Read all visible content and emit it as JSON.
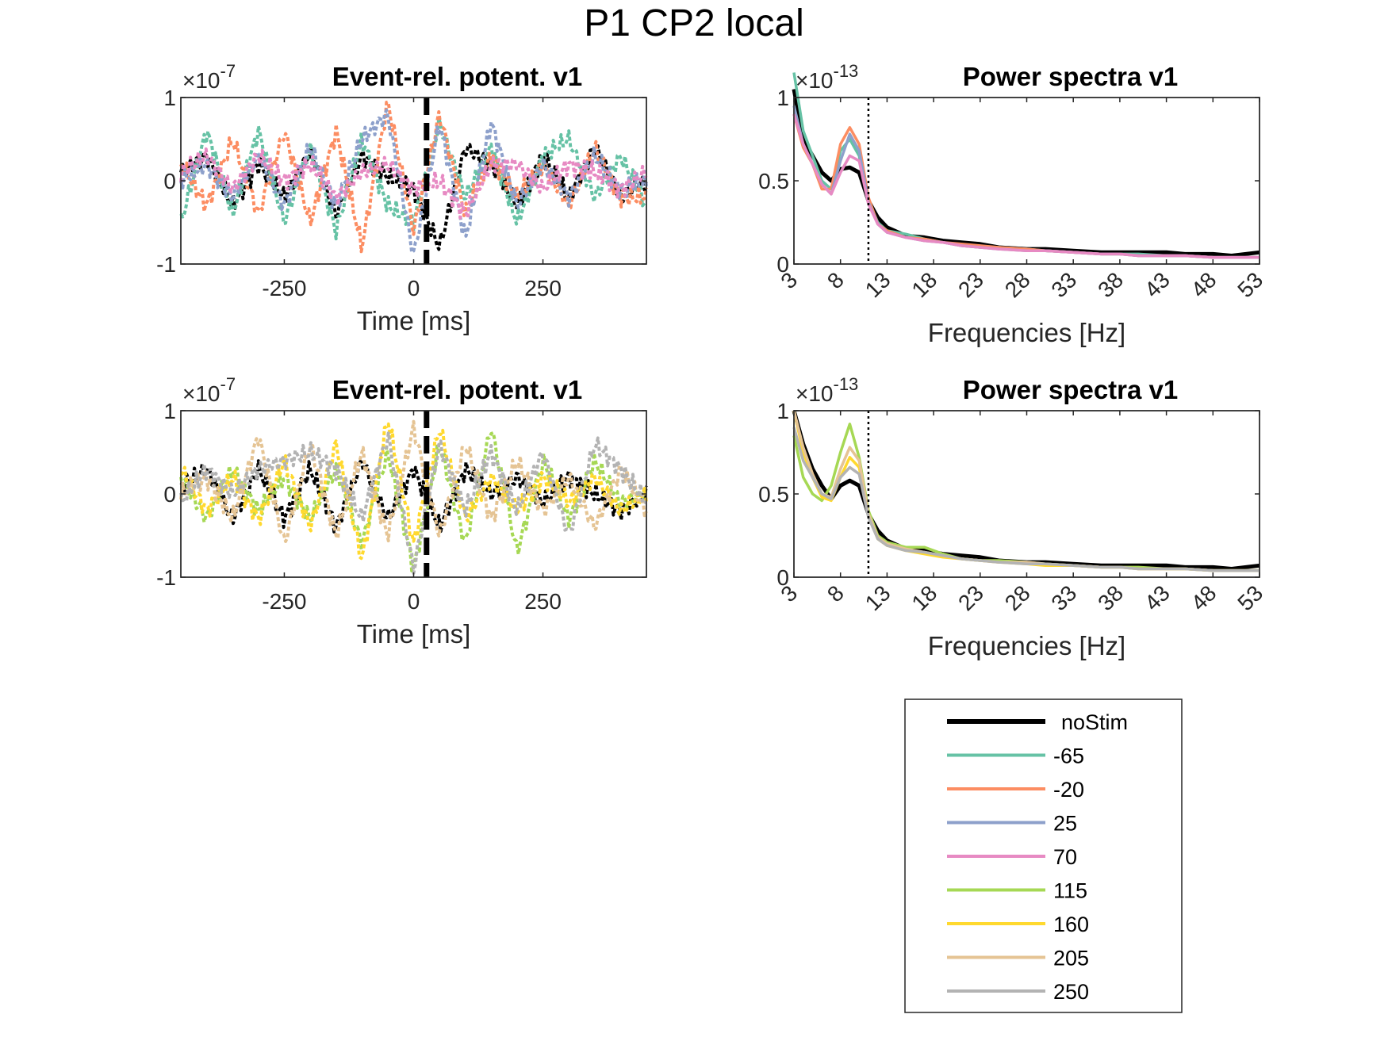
{
  "figure_title": "P1 CP2 local",
  "colors": {
    "noStim": "#000000",
    "-65": "#66c2a5",
    "-20": "#fc8d62",
    "25": "#8da0cb",
    "70": "#e78ac3",
    "115": "#a6d854",
    "160": "#ffd92f",
    "205": "#e5c494",
    "250": "#b3b3b3"
  },
  "legend": {
    "entries": [
      {
        "label": "noStim",
        "color": "#000000"
      },
      {
        "label": "-65",
        "color": "#66c2a5"
      },
      {
        "label": "-20",
        "color": "#fc8d62"
      },
      {
        "label": "25",
        "color": "#8da0cb"
      },
      {
        "label": "70",
        "color": "#e78ac3"
      },
      {
        "label": "115",
        "color": "#a6d854"
      },
      {
        "label": "160",
        "color": "#ffd92f"
      },
      {
        "label": "205",
        "color": "#e5c494"
      },
      {
        "label": "250",
        "color": "#b3b3b3"
      }
    ]
  },
  "chart_data": [
    {
      "type": "line",
      "title": "Event-rel. potent. v1",
      "exponent": "-7",
      "xlabel": "Time [ms]",
      "ylabel": "",
      "xlim": [
        -450,
        450
      ],
      "ylim": [
        -1,
        1
      ],
      "xticks": [
        -250,
        0,
        250
      ],
      "yticks": [
        -1,
        0,
        1
      ],
      "vline_x": 25,
      "series": [
        {
          "name": "noStim",
          "color": "#000000",
          "x": [
            -450,
            -400,
            -350,
            -300,
            -250,
            -200,
            -150,
            -100,
            -50,
            0,
            50,
            100,
            150,
            200,
            250,
            300,
            350,
            400,
            450
          ],
          "values": [
            0.1,
            0.3,
            -0.3,
            0.2,
            -0.2,
            0.35,
            -0.4,
            0.3,
            0.05,
            -0.1,
            -0.8,
            0.4,
            0.2,
            -0.3,
            0.3,
            -0.2,
            0.4,
            -0.2,
            0.0
          ]
        },
        {
          "name": "-65",
          "color": "#66c2a5",
          "x": [
            -450,
            -400,
            -350,
            -300,
            -250,
            -200,
            -150,
            -100,
            -50,
            0,
            50,
            100,
            150,
            200,
            250,
            300,
            350,
            400,
            450
          ],
          "values": [
            -0.5,
            0.6,
            -0.4,
            0.6,
            -0.5,
            0.4,
            -0.6,
            0.5,
            -0.3,
            -0.5,
            0.7,
            -0.2,
            0.4,
            -0.5,
            0.3,
            0.5,
            -0.2,
            0.3,
            -0.3
          ]
        },
        {
          "name": "-20",
          "color": "#fc8d62",
          "x": [
            -450,
            -400,
            -350,
            -300,
            -250,
            -200,
            -150,
            -100,
            -50,
            0,
            50,
            100,
            150,
            200,
            250,
            300,
            350,
            400,
            450
          ],
          "values": [
            0.2,
            -0.3,
            0.5,
            -0.4,
            0.6,
            -0.5,
            0.6,
            -0.8,
            0.95,
            -0.6,
            0.8,
            -0.4,
            0.3,
            -0.2,
            0.2,
            -0.3,
            0.4,
            -0.2,
            -0.2
          ]
        },
        {
          "name": "25",
          "color": "#8da0cb",
          "x": [
            -450,
            -400,
            -350,
            -300,
            -250,
            -200,
            -150,
            -100,
            -50,
            0,
            50,
            100,
            150,
            200,
            250,
            300,
            350,
            400,
            450
          ],
          "values": [
            0.0,
            0.2,
            -0.2,
            0.3,
            -0.3,
            0.4,
            -0.3,
            0.5,
            0.8,
            -0.9,
            0.7,
            -0.7,
            0.7,
            -0.3,
            0.2,
            -0.2,
            0.3,
            -0.1,
            0.0
          ]
        },
        {
          "name": "70",
          "color": "#e78ac3",
          "x": [
            -450,
            -400,
            -350,
            -300,
            -250,
            -200,
            -150,
            -100,
            -50,
            0,
            50,
            100,
            150,
            200,
            250,
            300,
            350,
            400,
            450
          ],
          "values": [
            0.1,
            0.3,
            -0.1,
            0.3,
            0.0,
            0.2,
            -0.2,
            0.1,
            0.2,
            -0.1,
            0.0,
            -0.4,
            0.2,
            0.2,
            -0.1,
            0.2,
            0.1,
            -0.1,
            0.1
          ]
        }
      ]
    },
    {
      "type": "line",
      "title": "Power spectra v1",
      "exponent": "-13",
      "xlabel": "Frequencies [Hz]",
      "ylabel": "",
      "xlim": [
        3,
        53
      ],
      "ylim": [
        0,
        1
      ],
      "xticks": [
        3,
        8,
        13,
        18,
        23,
        28,
        33,
        38,
        43,
        48,
        53
      ],
      "yticks": [
        0,
        0.5,
        1
      ],
      "vline_x": 11,
      "x": [
        3,
        4,
        5,
        6,
        7,
        8,
        9,
        10,
        11,
        12,
        13,
        15,
        17,
        19,
        21,
        23,
        25,
        28,
        30,
        33,
        36,
        38,
        40,
        43,
        45,
        48,
        50,
        53
      ],
      "series": [
        {
          "name": "noStim",
          "color": "#000000",
          "values": [
            1.05,
            0.75,
            0.65,
            0.55,
            0.5,
            0.57,
            0.58,
            0.55,
            0.38,
            0.28,
            0.22,
            0.17,
            0.16,
            0.14,
            0.13,
            0.12,
            0.1,
            0.09,
            0.09,
            0.08,
            0.07,
            0.07,
            0.07,
            0.07,
            0.06,
            0.06,
            0.05,
            0.07
          ]
        },
        {
          "name": "-65",
          "color": "#66c2a5",
          "values": [
            1.15,
            0.8,
            0.65,
            0.5,
            0.45,
            0.68,
            0.75,
            0.65,
            0.38,
            0.25,
            0.2,
            0.18,
            0.15,
            0.13,
            0.11,
            0.1,
            0.1,
            0.09,
            0.08,
            0.07,
            0.06,
            0.06,
            0.06,
            0.05,
            0.05,
            0.04,
            0.04,
            0.04
          ]
        },
        {
          "name": "-20",
          "color": "#fc8d62",
          "values": [
            0.9,
            0.7,
            0.6,
            0.45,
            0.45,
            0.72,
            0.82,
            0.72,
            0.4,
            0.24,
            0.2,
            0.16,
            0.15,
            0.13,
            0.12,
            0.11,
            0.1,
            0.09,
            0.08,
            0.07,
            0.06,
            0.06,
            0.05,
            0.05,
            0.05,
            0.04,
            0.04,
            0.04
          ]
        },
        {
          "name": "25",
          "color": "#8da0cb",
          "values": [
            0.95,
            0.72,
            0.6,
            0.48,
            0.42,
            0.62,
            0.78,
            0.68,
            0.37,
            0.24,
            0.19,
            0.16,
            0.14,
            0.13,
            0.11,
            0.1,
            0.09,
            0.08,
            0.08,
            0.07,
            0.06,
            0.06,
            0.05,
            0.05,
            0.05,
            0.04,
            0.04,
            0.04
          ]
        },
        {
          "name": "70",
          "color": "#e78ac3",
          "values": [
            0.9,
            0.72,
            0.6,
            0.48,
            0.42,
            0.55,
            0.65,
            0.62,
            0.36,
            0.24,
            0.19,
            0.16,
            0.14,
            0.13,
            0.11,
            0.1,
            0.09,
            0.08,
            0.08,
            0.07,
            0.06,
            0.06,
            0.05,
            0.05,
            0.05,
            0.04,
            0.04,
            0.04
          ]
        }
      ]
    },
    {
      "type": "line",
      "title": "Event-rel. potent. v1",
      "exponent": "-7",
      "xlabel": "Time [ms]",
      "ylabel": "",
      "xlim": [
        -450,
        450
      ],
      "ylim": [
        -1,
        1
      ],
      "xticks": [
        -250,
        0,
        250
      ],
      "yticks": [
        -1,
        0,
        1
      ],
      "vline_x": 25,
      "series": [
        {
          "name": "noStim",
          "color": "#000000",
          "x": [
            -450,
            -400,
            -350,
            -300,
            -250,
            -200,
            -150,
            -100,
            -50,
            0,
            50,
            100,
            150,
            200,
            250,
            300,
            350,
            400,
            450
          ],
          "values": [
            0.1,
            0.3,
            -0.3,
            0.3,
            -0.3,
            0.3,
            -0.4,
            0.4,
            -0.3,
            0.3,
            -0.4,
            0.3,
            0.0,
            0.2,
            -0.1,
            0.2,
            0.0,
            -0.2,
            0.0
          ]
        },
        {
          "name": "115",
          "color": "#a6d854",
          "x": [
            -450,
            -400,
            -350,
            -300,
            -250,
            -200,
            -150,
            -100,
            -50,
            0,
            50,
            100,
            150,
            200,
            250,
            300,
            350,
            400,
            450
          ],
          "values": [
            0.2,
            -0.3,
            0.3,
            -0.2,
            0.2,
            -0.3,
            0.3,
            -0.6,
            0.5,
            -0.9,
            0.6,
            -0.6,
            0.8,
            -0.7,
            0.4,
            -0.3,
            0.4,
            -0.1,
            0.0
          ]
        },
        {
          "name": "160",
          "color": "#ffd92f",
          "x": [
            -450,
            -400,
            -350,
            -300,
            -250,
            -200,
            -150,
            -100,
            -50,
            0,
            50,
            100,
            150,
            200,
            250,
            300,
            350,
            400,
            450
          ],
          "values": [
            0.3,
            -0.2,
            0.2,
            -0.3,
            0.4,
            -0.4,
            0.6,
            -0.8,
            0.9,
            -0.6,
            0.8,
            -0.3,
            0.2,
            -0.2,
            0.2,
            -0.1,
            0.2,
            -0.2,
            0.0
          ]
        },
        {
          "name": "205",
          "color": "#e5c494",
          "x": [
            -450,
            -400,
            -350,
            -300,
            -250,
            -200,
            -150,
            -100,
            -50,
            0,
            50,
            100,
            150,
            200,
            250,
            300,
            350,
            400,
            450
          ],
          "values": [
            0.0,
            0.2,
            -0.3,
            0.7,
            -0.6,
            0.6,
            -0.5,
            0.5,
            -0.5,
            0.8,
            -0.5,
            0.6,
            -0.3,
            0.4,
            -0.2,
            0.2,
            -0.4,
            0.3,
            -0.2
          ]
        },
        {
          "name": "250",
          "color": "#b3b3b3",
          "x": [
            -450,
            -400,
            -350,
            -300,
            -250,
            -200,
            -150,
            -100,
            -50,
            0,
            50,
            100,
            150,
            200,
            250,
            300,
            350,
            400,
            450
          ],
          "values": [
            -0.1,
            0.3,
            0.0,
            0.3,
            0.4,
            0.5,
            0.3,
            -0.3,
            0.7,
            -0.9,
            0.6,
            -0.2,
            0.5,
            -0.2,
            0.5,
            -0.5,
            0.6,
            0.3,
            -0.1
          ]
        }
      ]
    },
    {
      "type": "line",
      "title": "Power spectra v1",
      "exponent": "-13",
      "xlabel": "Frequencies [Hz]",
      "ylabel": "",
      "xlim": [
        3,
        53
      ],
      "ylim": [
        0,
        1
      ],
      "xticks": [
        3,
        8,
        13,
        18,
        23,
        28,
        33,
        38,
        43,
        48,
        53
      ],
      "yticks": [
        0,
        0.5,
        1
      ],
      "vline_x": 11,
      "x": [
        3,
        4,
        5,
        6,
        7,
        8,
        9,
        10,
        11,
        12,
        13,
        15,
        17,
        19,
        21,
        23,
        25,
        28,
        30,
        33,
        36,
        38,
        40,
        43,
        45,
        48,
        50,
        53
      ],
      "series": [
        {
          "name": "noStim",
          "color": "#000000",
          "values": [
            1.0,
            0.8,
            0.65,
            0.55,
            0.47,
            0.55,
            0.58,
            0.55,
            0.38,
            0.28,
            0.22,
            0.17,
            0.16,
            0.14,
            0.13,
            0.12,
            0.1,
            0.09,
            0.09,
            0.08,
            0.07,
            0.07,
            0.07,
            0.07,
            0.06,
            0.06,
            0.05,
            0.07
          ]
        },
        {
          "name": "115",
          "color": "#a6d854",
          "values": [
            0.85,
            0.6,
            0.5,
            0.46,
            0.55,
            0.75,
            0.92,
            0.72,
            0.4,
            0.25,
            0.21,
            0.18,
            0.18,
            0.14,
            0.11,
            0.1,
            0.1,
            0.09,
            0.08,
            0.07,
            0.06,
            0.06,
            0.06,
            0.05,
            0.05,
            0.04,
            0.04,
            0.04
          ]
        },
        {
          "name": "160",
          "color": "#ffd92f",
          "values": [
            1.0,
            0.75,
            0.6,
            0.48,
            0.46,
            0.6,
            0.72,
            0.66,
            0.37,
            0.23,
            0.19,
            0.16,
            0.14,
            0.12,
            0.11,
            0.1,
            0.09,
            0.08,
            0.07,
            0.07,
            0.06,
            0.06,
            0.05,
            0.05,
            0.05,
            0.04,
            0.04,
            0.04
          ]
        },
        {
          "name": "205",
          "color": "#e5c494",
          "values": [
            1.0,
            0.78,
            0.62,
            0.5,
            0.48,
            0.65,
            0.78,
            0.7,
            0.38,
            0.24,
            0.2,
            0.17,
            0.15,
            0.13,
            0.11,
            0.1,
            0.09,
            0.09,
            0.08,
            0.07,
            0.06,
            0.06,
            0.05,
            0.05,
            0.05,
            0.04,
            0.04,
            0.04
          ]
        },
        {
          "name": "250",
          "color": "#b3b3b3",
          "values": [
            0.9,
            0.7,
            0.6,
            0.5,
            0.47,
            0.6,
            0.66,
            0.62,
            0.36,
            0.23,
            0.19,
            0.16,
            0.15,
            0.13,
            0.11,
            0.1,
            0.09,
            0.08,
            0.08,
            0.07,
            0.06,
            0.06,
            0.05,
            0.05,
            0.05,
            0.04,
            0.04,
            0.04
          ]
        }
      ]
    }
  ]
}
